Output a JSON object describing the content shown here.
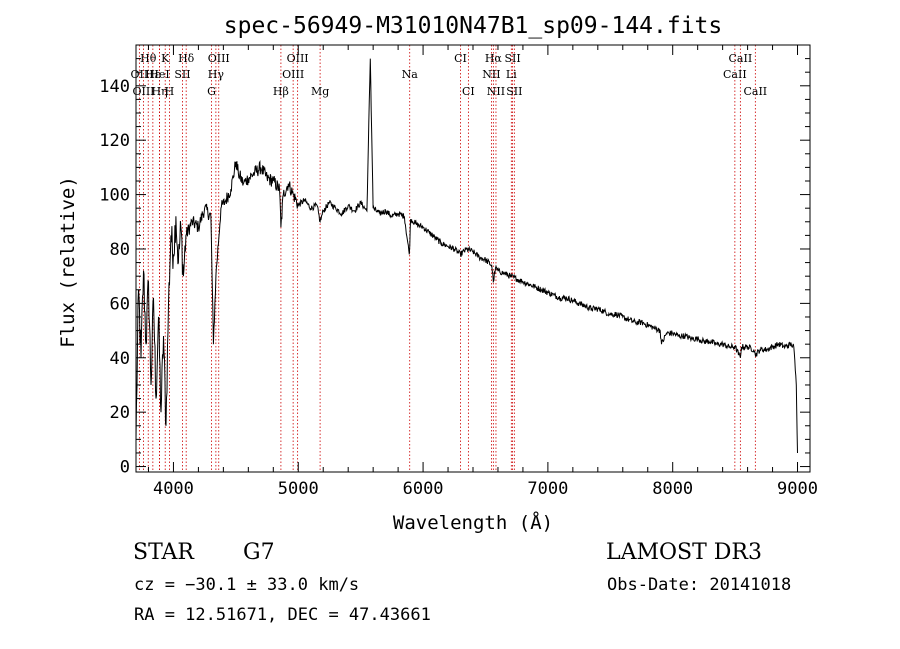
{
  "chart_data": {
    "type": "line",
    "title": "spec-56949-M31010N47B1_sp09-144.fits",
    "xlabel": "Wavelength (Å)",
    "ylabel": "Flux (relative)",
    "xlim": [
      3700,
      9100
    ],
    "ylim": [
      -2,
      155
    ],
    "xticks": [
      4000,
      5000,
      6000,
      7000,
      8000,
      9000
    ],
    "xtick_labels": [
      "4000",
      "5000",
      "6000",
      "7000",
      "8000",
      "9000"
    ],
    "yticks": [
      0,
      20,
      40,
      60,
      80,
      100,
      120,
      140
    ],
    "ytick_labels": [
      "0",
      "20",
      "40",
      "60",
      "80",
      "100",
      "120",
      "140"
    ],
    "grid": false,
    "series": [
      {
        "name": "flux",
        "x": [
          3700,
          3720,
          3740,
          3760,
          3780,
          3800,
          3820,
          3840,
          3860,
          3880,
          3900,
          3920,
          3940,
          3960,
          3980,
          4000,
          4020,
          4040,
          4060,
          4080,
          4100,
          4150,
          4200,
          4250,
          4300,
          4320,
          4340,
          4380,
          4420,
          4460,
          4500,
          4520,
          4560,
          4600,
          4650,
          4700,
          4750,
          4800,
          4850,
          4861,
          4880,
          4920,
          4960,
          5000,
          5050,
          5100,
          5150,
          5175,
          5200,
          5250,
          5300,
          5350,
          5400,
          5450,
          5500,
          5550,
          5577,
          5600,
          5650,
          5700,
          5750,
          5800,
          5850,
          5890,
          5900,
          5950,
          6000,
          6050,
          6100,
          6150,
          6200,
          6250,
          6300,
          6350,
          6400,
          6450,
          6500,
          6550,
          6563,
          6580,
          6600,
          6650,
          6700,
          6750,
          6800,
          6850,
          6900,
          6950,
          7000,
          7050,
          7100,
          7150,
          7200,
          7250,
          7300,
          7350,
          7400,
          7450,
          7500,
          7550,
          7600,
          7650,
          7700,
          7750,
          7800,
          7850,
          7900,
          7910,
          7950,
          8000,
          8050,
          8100,
          8150,
          8200,
          8250,
          8300,
          8350,
          8400,
          8450,
          8500,
          8542,
          8550,
          8600,
          8650,
          8662,
          8700,
          8750,
          8800,
          8850,
          8900,
          8950,
          8970,
          8990,
          9000
        ],
        "y": [
          10,
          65,
          40,
          72,
          45,
          68,
          30,
          62,
          25,
          55,
          20,
          48,
          15,
          60,
          85,
          78,
          92,
          75,
          88,
          70,
          85,
          90,
          88,
          95,
          92,
          45,
          70,
          95,
          98,
          102,
          112,
          108,
          104,
          106,
          108,
          110,
          106,
          105,
          102,
          88,
          100,
          104,
          100,
          96,
          98,
          95,
          96,
          90,
          94,
          97,
          95,
          93,
          96,
          94,
          97,
          94,
          150,
          95,
          93,
          94,
          92,
          93,
          92,
          78,
          91,
          89,
          88,
          86,
          84,
          82,
          81,
          80,
          78,
          80,
          79,
          77,
          76,
          74,
          68,
          73,
          72,
          71,
          70,
          69,
          68,
          67,
          66,
          65,
          64,
          63,
          62,
          62,
          61,
          60,
          59,
          58,
          58,
          57,
          56,
          56,
          55,
          54,
          53,
          53,
          52,
          51,
          50,
          45,
          49,
          49,
          48,
          48,
          47,
          47,
          46,
          46,
          45,
          45,
          44,
          44,
          40,
          44,
          44,
          43,
          41,
          43,
          43,
          44,
          45,
          44,
          45,
          44,
          30,
          5
        ]
      }
    ],
    "line_marks": [
      {
        "label": "Hθ",
        "x": 3798,
        "row": 1
      },
      {
        "label": "OII",
        "x": 3727,
        "row": 2
      },
      {
        "label": "OIII",
        "x": 3760,
        "row": 3
      },
      {
        "label": "Hε",
        "x": 3835,
        "row": 2
      },
      {
        "label": "Hη",
        "x": 3889,
        "row": 3
      },
      {
        "label": "K",
        "x": 3934,
        "row": 1
      },
      {
        "label": "HeI",
        "x": 3888,
        "row": 2
      },
      {
        "label": "H",
        "x": 3968,
        "row": 3
      },
      {
        "label": "SII",
        "x": 4072,
        "row": 2
      },
      {
        "label": "Hδ",
        "x": 4102,
        "row": 1
      },
      {
        "label": "OIII",
        "x": 4363,
        "row": 1
      },
      {
        "label": "Hγ",
        "x": 4340,
        "row": 2
      },
      {
        "label": "G",
        "x": 4305,
        "row": 3
      },
      {
        "label": "Hβ",
        "x": 4861,
        "row": 3
      },
      {
        "label": "OIII",
        "x": 4995,
        "row": 1
      },
      {
        "label": "OIII",
        "x": 4959,
        "row": 2
      },
      {
        "label": "Mg",
        "x": 5175,
        "row": 3
      },
      {
        "label": "Na",
        "x": 5893,
        "row": 2
      },
      {
        "label": "CI",
        "x": 6300,
        "row": 1
      },
      {
        "label": "CI",
        "x": 6363,
        "row": 3
      },
      {
        "label": "Hα",
        "x": 6563,
        "row": 1
      },
      {
        "label": "NII",
        "x": 6548,
        "row": 2
      },
      {
        "label": "NII",
        "x": 6584,
        "row": 3
      },
      {
        "label": "SII",
        "x": 6717,
        "row": 1
      },
      {
        "label": "Li",
        "x": 6707,
        "row": 2
      },
      {
        "label": "SII",
        "x": 6731,
        "row": 3
      },
      {
        "label": "CaII",
        "x": 8542,
        "row": 1
      },
      {
        "label": "CaII",
        "x": 8498,
        "row": 2
      },
      {
        "label": "CaII",
        "x": 8662,
        "row": 3
      }
    ]
  },
  "info": {
    "object_type": "STAR",
    "subclass": "G7",
    "release": "LAMOST DR3",
    "cz": "cz = −30.1 ± 33.0 km/s",
    "obs_date": "Obs-Date: 20141018",
    "coords": "RA =  12.51671, DEC =  47.43661"
  },
  "colors": {
    "line": "#000000",
    "marker": "#cc0000",
    "axis": "#000000",
    "background": "#ffffff"
  }
}
